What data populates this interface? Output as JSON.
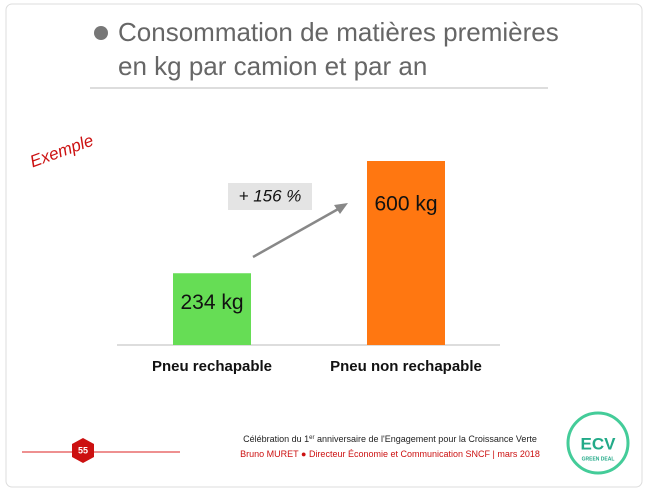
{
  "chart_data": {
    "type": "bar",
    "title": [
      "Consommation de matières premières",
      "en kg par camion et par an"
    ],
    "categories": [
      "Pneu rechapable",
      "Pneu non rechapable"
    ],
    "values": [
      234,
      600
    ],
    "value_labels": [
      "234 kg",
      "600 kg"
    ],
    "colors": [
      "#66dd55",
      "#ff7711"
    ],
    "annotation": "+ 156 %"
  },
  "tag": "Exemple",
  "footer": {
    "line1": [
      "Célébration du 1",
      "er",
      " anniversaire de l'Engagement pour la Croissance Verte"
    ],
    "line2": [
      "Bruno MURET",
      "●",
      " Directeur Économie et Communication SNCF | mars 2018"
    ]
  },
  "page_number": "55",
  "logo": [
    "ECV",
    "GREEN DEAL"
  ]
}
